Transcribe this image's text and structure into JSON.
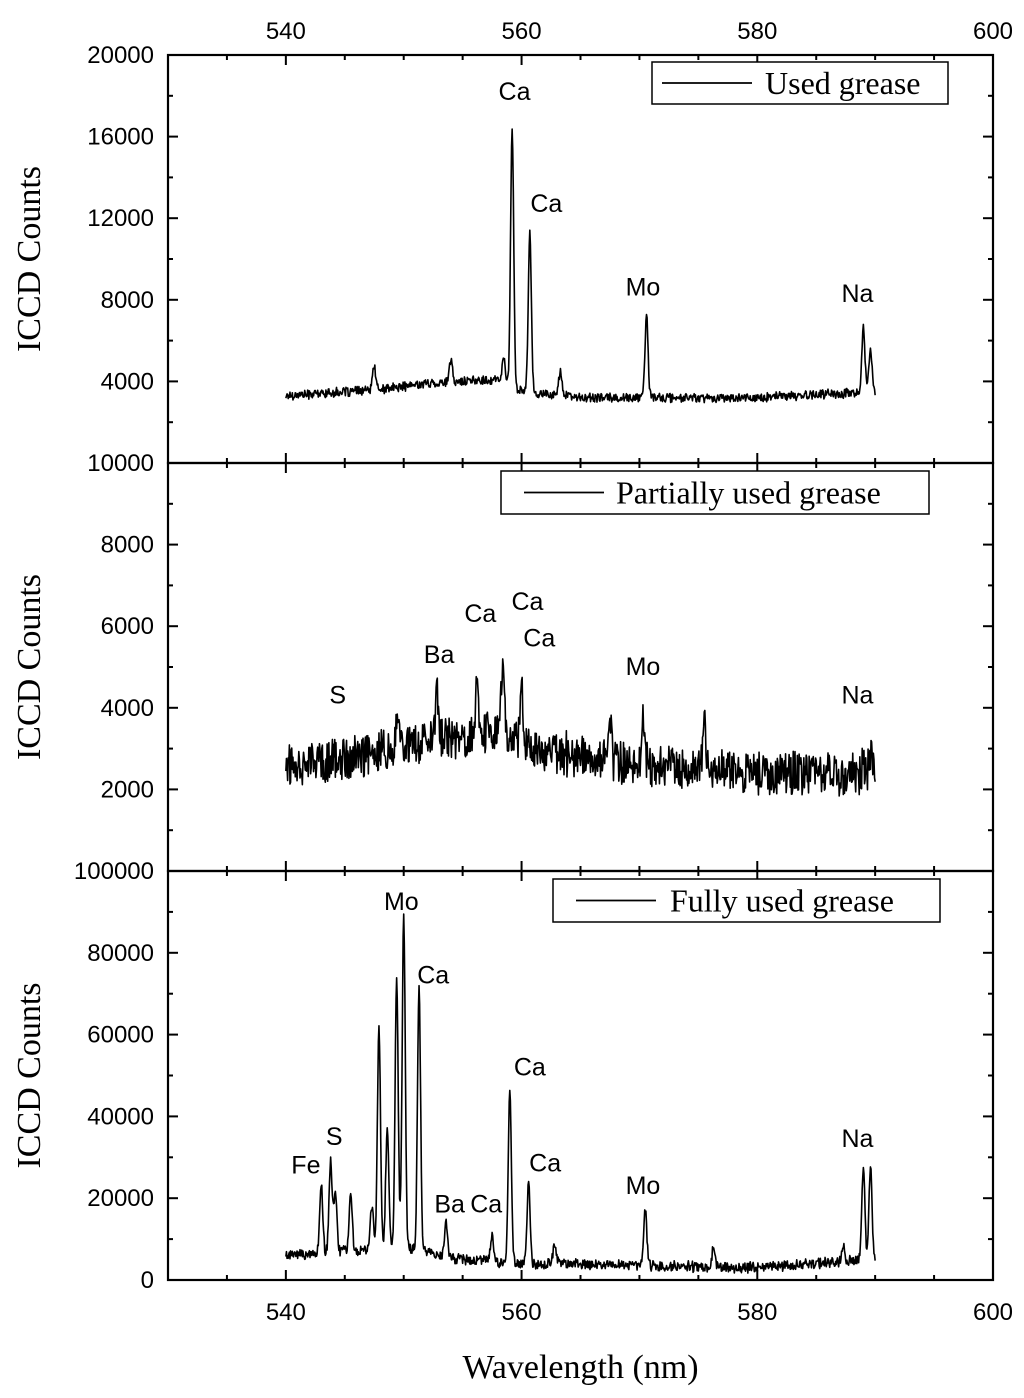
{
  "chart_data": [
    {
      "type": "line",
      "panel": "top",
      "legend": "Used grease",
      "legend_position": "top-right",
      "ylabel": "ICCD Counts",
      "xlim": [
        530,
        600
      ],
      "ylim": [
        0,
        20000
      ],
      "yticks": [
        4000,
        8000,
        12000,
        16000,
        20000
      ],
      "baseline": 3300,
      "noise": 260,
      "envelope": [
        [
          540,
          3300
        ],
        [
          548,
          3600
        ],
        [
          552,
          3900
        ],
        [
          558,
          4100
        ],
        [
          560,
          3500
        ],
        [
          565,
          3200
        ],
        [
          580,
          3200
        ],
        [
          590,
          3500
        ]
      ],
      "peaks": [
        {
          "x": 547.5,
          "y": 4800
        },
        {
          "x": 554,
          "y": 5000
        },
        {
          "x": 558.5,
          "y": 5200
        },
        {
          "x": 559.2,
          "y": 16400
        },
        {
          "x": 560.7,
          "y": 11300
        },
        {
          "x": 563.3,
          "y": 4600
        },
        {
          "x": 570.6,
          "y": 7200
        },
        {
          "x": 589.0,
          "y": 6600
        },
        {
          "x": 589.6,
          "y": 5600
        }
      ],
      "annotations": [
        {
          "text": "Ca",
          "x": 559.4,
          "y": 17800,
          "small": true
        },
        {
          "text": "Ca",
          "x": 562.1,
          "y": 12300
        },
        {
          "text": "Mo",
          "x": 570.3,
          "y": 8200
        },
        {
          "text": "Na",
          "x": 588.5,
          "y": 7900
        }
      ]
    },
    {
      "type": "line",
      "panel": "middle",
      "legend": "Partially used grease",
      "legend_position": "top-right",
      "ylabel": "ICCD Counts",
      "xlim": [
        530,
        600
      ],
      "ylim": [
        0,
        10000
      ],
      "yticks": [
        2000,
        4000,
        6000,
        8000,
        10000
      ],
      "baseline": 2600,
      "noise": 620,
      "envelope": [
        [
          540,
          2600
        ],
        [
          545,
          2700
        ],
        [
          550,
          3100
        ],
        [
          556,
          3300
        ],
        [
          558,
          3500
        ],
        [
          562,
          2900
        ],
        [
          570,
          2600
        ],
        [
          580,
          2400
        ],
        [
          590,
          2400
        ]
      ],
      "peaks": [
        {
          "x": 549.5,
          "y": 4100
        },
        {
          "x": 552.8,
          "y": 4300
        },
        {
          "x": 556.2,
          "y": 4700
        },
        {
          "x": 558.4,
          "y": 5200
        },
        {
          "x": 560.0,
          "y": 4600
        },
        {
          "x": 567.5,
          "y": 3800
        },
        {
          "x": 570.3,
          "y": 3900
        },
        {
          "x": 575.5,
          "y": 3700
        },
        {
          "x": 589.7,
          "y": 3100
        }
      ],
      "annotations": [
        {
          "text": "S",
          "x": 544.4,
          "y": 4100
        },
        {
          "text": "Ba",
          "x": 553.0,
          "y": 5100
        },
        {
          "text": "Ca",
          "x": 556.5,
          "y": 6100
        },
        {
          "text": "Ca",
          "x": 560.5,
          "y": 6400
        },
        {
          "text": "Ca",
          "x": 561.5,
          "y": 5500
        },
        {
          "text": "Mo",
          "x": 570.3,
          "y": 4800
        },
        {
          "text": "Na",
          "x": 588.5,
          "y": 4100
        }
      ]
    },
    {
      "type": "line",
      "panel": "bottom",
      "legend": "Fully used grease",
      "legend_position": "top-right",
      "ylabel": "ICCD Counts",
      "xlim": [
        530,
        600
      ],
      "ylim": [
        0,
        100000
      ],
      "yticks": [
        0,
        20000,
        40000,
        60000,
        80000,
        100000
      ],
      "xticks": [
        540,
        560,
        580,
        600
      ],
      "xlabel": "Wavelength (nm)",
      "baseline": 4000,
      "noise": 1500,
      "envelope": [
        [
          540,
          6000
        ],
        [
          545,
          7000
        ],
        [
          550,
          8000
        ],
        [
          555,
          5000
        ],
        [
          560,
          4000
        ],
        [
          565,
          4000
        ],
        [
          570,
          3500
        ],
        [
          580,
          3000
        ],
        [
          590,
          5000
        ]
      ],
      "peaks": [
        {
          "x": 543.0,
          "y": 23000
        },
        {
          "x": 543.8,
          "y": 29000
        },
        {
          "x": 544.2,
          "y": 22000
        },
        {
          "x": 545.5,
          "y": 22000
        },
        {
          "x": 547.3,
          "y": 18000
        },
        {
          "x": 547.9,
          "y": 62000
        },
        {
          "x": 548.6,
          "y": 37000
        },
        {
          "x": 549.4,
          "y": 74000
        },
        {
          "x": 550.0,
          "y": 89000
        },
        {
          "x": 551.3,
          "y": 71000
        },
        {
          "x": 553.6,
          "y": 14000
        },
        {
          "x": 557.5,
          "y": 11000
        },
        {
          "x": 559.0,
          "y": 47000
        },
        {
          "x": 560.6,
          "y": 24000
        },
        {
          "x": 562.8,
          "y": 9000
        },
        {
          "x": 570.5,
          "y": 17000
        },
        {
          "x": 576.3,
          "y": 8000
        },
        {
          "x": 587.3,
          "y": 9000
        },
        {
          "x": 589.0,
          "y": 27500
        },
        {
          "x": 589.6,
          "y": 27500
        }
      ],
      "annotations": [
        {
          "text": "Fe",
          "x": 541.7,
          "y": 26000
        },
        {
          "text": "S",
          "x": 544.1,
          "y": 33000
        },
        {
          "text": "Mo",
          "x": 549.8,
          "y": 90500
        },
        {
          "text": "Ca",
          "x": 552.5,
          "y": 72500
        },
        {
          "text": "Ba",
          "x": 553.9,
          "y": 16500
        },
        {
          "text": "Ca",
          "x": 557.0,
          "y": 16500
        },
        {
          "text": "Ca",
          "x": 560.7,
          "y": 50000
        },
        {
          "text": "Ca",
          "x": 562.0,
          "y": 26500
        },
        {
          "text": "Mo",
          "x": 570.3,
          "y": 21000
        },
        {
          "text": "Na",
          "x": 588.5,
          "y": 32500
        }
      ]
    }
  ]
}
